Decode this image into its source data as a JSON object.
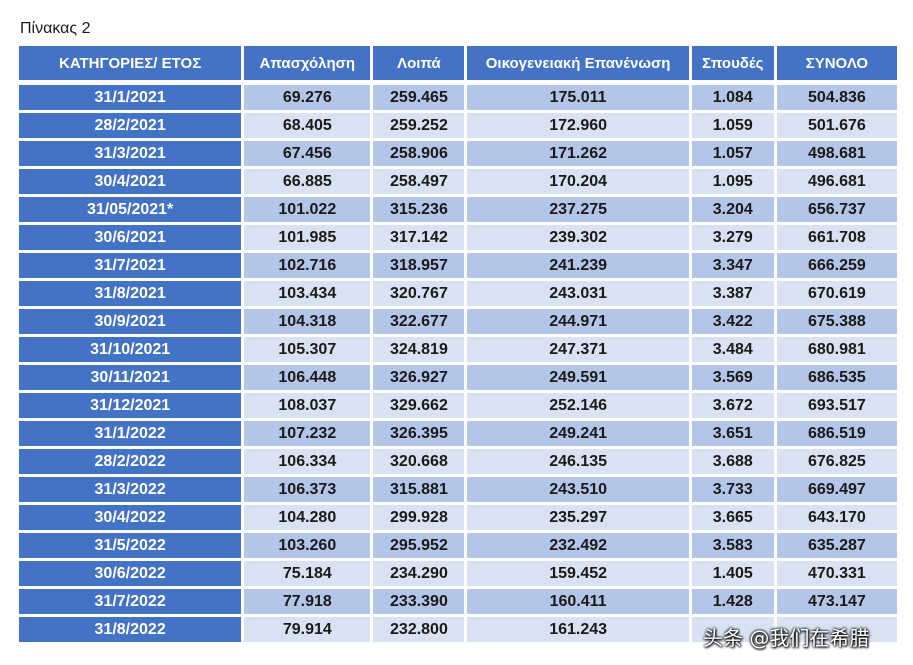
{
  "caption": "Πίνακας 2",
  "table": {
    "headers": [
      "ΚΑΤΗΓΟΡΙΕΣ/ ΕΤΟΣ",
      "Απασχόληση",
      "Λοιπά",
      "Οικογενειακή Επανένωση",
      "Σπουδές",
      "ΣΥΝΟΛΟ"
    ],
    "rows": [
      [
        "31/1/2021",
        "69.276",
        "259.465",
        "175.011",
        "1.084",
        "504.836"
      ],
      [
        "28/2/2021",
        "68.405",
        "259.252",
        "172.960",
        "1.059",
        "501.676"
      ],
      [
        "31/3/2021",
        "67.456",
        "258.906",
        "171.262",
        "1.057",
        "498.681"
      ],
      [
        "30/4/2021",
        "66.885",
        "258.497",
        "170.204",
        "1.095",
        "496.681"
      ],
      [
        "31/05/2021*",
        "101.022",
        "315.236",
        "237.275",
        "3.204",
        "656.737"
      ],
      [
        "30/6/2021",
        "101.985",
        "317.142",
        "239.302",
        "3.279",
        "661.708"
      ],
      [
        "31/7/2021",
        "102.716",
        "318.957",
        "241.239",
        "3.347",
        "666.259"
      ],
      [
        "31/8/2021",
        "103.434",
        "320.767",
        "243.031",
        "3.387",
        "670.619"
      ],
      [
        "30/9/2021",
        "104.318",
        "322.677",
        "244.971",
        "3.422",
        "675.388"
      ],
      [
        "31/10/2021",
        "105.307",
        "324.819",
        "247.371",
        "3.484",
        "680.981"
      ],
      [
        "30/11/2021",
        "106.448",
        "326.927",
        "249.591",
        "3.569",
        "686.535"
      ],
      [
        "31/12/2021",
        "108.037",
        "329.662",
        "252.146",
        "3.672",
        "693.517"
      ],
      [
        "31/1/2022",
        "107.232",
        "326.395",
        "249.241",
        "3.651",
        "686.519"
      ],
      [
        "28/2/2022",
        "106.334",
        "320.668",
        "246.135",
        "3.688",
        "676.825"
      ],
      [
        "31/3/2022",
        "106.373",
        "315.881",
        "243.510",
        "3.733",
        "669.497"
      ],
      [
        "30/4/2022",
        "104.280",
        "299.928",
        "235.297",
        "3.665",
        "643.170"
      ],
      [
        "31/5/2022",
        "103.260",
        "295.952",
        "232.492",
        "3.583",
        "635.287"
      ],
      [
        "30/6/2022",
        "75.184",
        "234.290",
        "159.452",
        "1.405",
        "470.331"
      ],
      [
        "31/7/2022",
        "77.918",
        "233.390",
        "160.411",
        "1.428",
        "473.147"
      ],
      [
        "31/8/2022",
        "79.914",
        "232.800",
        "161.243",
        "",
        ""
      ]
    ]
  },
  "watermark": "头条 @我们在希腊",
  "colors": {
    "header_bg": "#4472c4",
    "date_bg": "#4472c4",
    "row_odd": "#b4c6e7",
    "row_even": "#d9e2f3"
  }
}
